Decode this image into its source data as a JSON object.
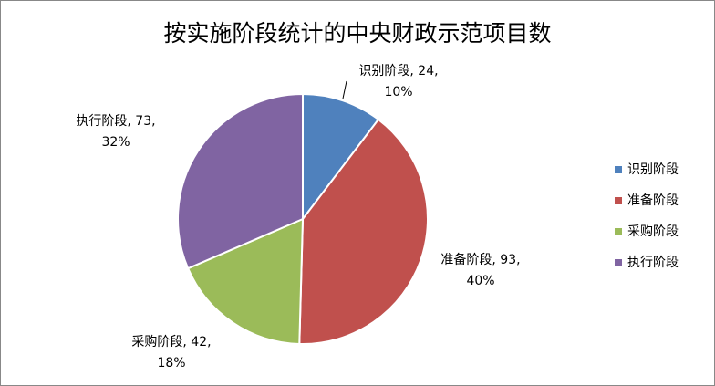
{
  "chart_data": {
    "type": "pie",
    "title": "按实施阶段统计的中央财政示范项目数",
    "categories": [
      "识别阶段",
      "准备阶段",
      "采购阶段",
      "执行阶段"
    ],
    "values": [
      24,
      93,
      42,
      73
    ],
    "value_labels": [
      [
        "识别阶段, 24,",
        "10%"
      ],
      [
        "准备阶段, 93,",
        "40%"
      ],
      [
        "采购阶段, 42,",
        "18%"
      ],
      [
        "执行阶段, 73,",
        "32%"
      ]
    ],
    "colors": [
      "#4f81bd",
      "#c0504d",
      "#9bbb59",
      "#8064a2"
    ],
    "legend": "right"
  }
}
